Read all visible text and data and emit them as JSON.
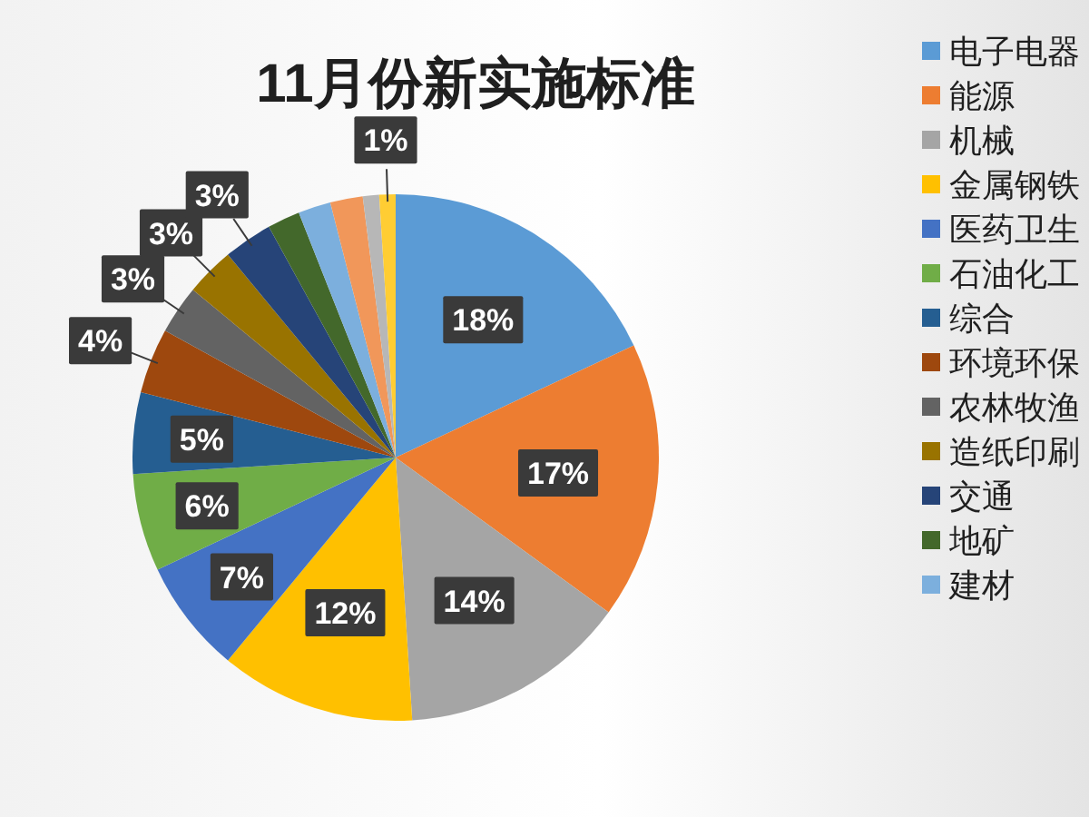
{
  "chart_data": {
    "type": "pie",
    "title": "11月份新实施标准",
    "categories": [
      "电子电器",
      "能源",
      "机械",
      "金属钢铁",
      "医药卫生",
      "石油化工",
      "综合",
      "环境环保",
      "农林牧渔",
      "造纸印刷",
      "交通",
      "地矿",
      "建材",
      null,
      null,
      null
    ],
    "values": [
      18,
      17,
      14,
      12,
      7,
      6,
      5,
      4,
      3,
      3,
      3,
      2,
      2,
      2,
      1,
      1
    ],
    "colors": [
      "#5b9bd5",
      "#ed7d31",
      "#a5a5a5",
      "#ffc000",
      "#4472c4",
      "#70ad47",
      "#255e91",
      "#9e480e",
      "#636363",
      "#997300",
      "#264478",
      "#43682b",
      "#7cafdd",
      "#f1975a",
      "#b7b7b7",
      "#ffcd33"
    ],
    "value_labels": [
      "18%",
      "17%",
      "14%",
      "12%",
      "7%",
      "6%",
      "5%",
      "4%",
      "3%",
      "3%",
      "3%",
      null,
      null,
      null,
      null,
      "1%"
    ],
    "legend": "right"
  }
}
